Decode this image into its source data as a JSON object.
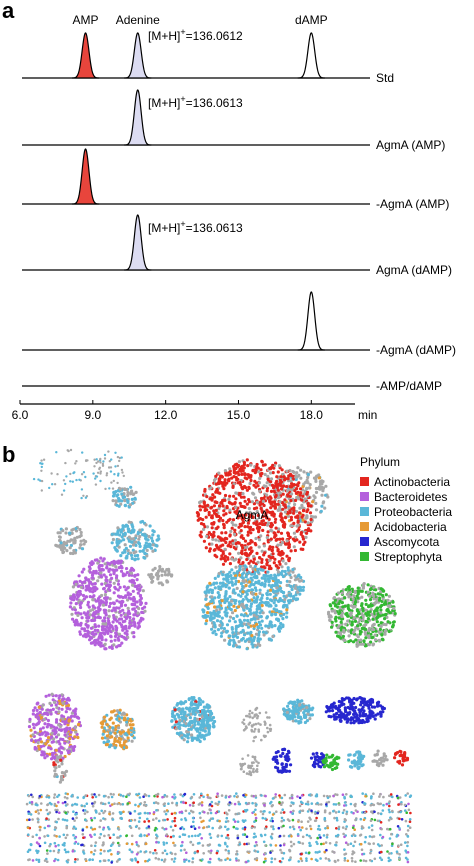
{
  "panel_a": {
    "label": "a",
    "peak_labels": [
      {
        "text": "AMP",
        "x": 8.7
      },
      {
        "text": "Adenine",
        "x": 10.85
      },
      {
        "text": "dAMP",
        "x": 18.0
      }
    ],
    "traces": [
      {
        "label": "Std",
        "annotation": [
          "[M+H]",
          "+",
          "=136.0612"
        ],
        "peaks": [
          {
            "x": 8.7,
            "color": "#e8453c"
          },
          {
            "x": 10.85,
            "color": "#dcdcf2"
          },
          {
            "x": 18.0,
            "color": "none"
          }
        ]
      },
      {
        "label": "AgmA (AMP)",
        "annotation": [
          "[M+H]",
          "+",
          "=136.0613"
        ],
        "peaks": [
          {
            "x": 10.85,
            "color": "#dcdcf2"
          }
        ]
      },
      {
        "label": "-AgmA (AMP)",
        "peaks": [
          {
            "x": 8.7,
            "color": "#e8453c"
          }
        ]
      },
      {
        "label": "AgmA (dAMP)",
        "annotation": [
          "[M+H]",
          "+",
          "=136.0613"
        ],
        "peaks": [
          {
            "x": 10.85,
            "color": "#dcdcf2"
          }
        ]
      },
      {
        "label": "-AgmA (dAMP)",
        "peaks": [
          {
            "x": 18.0,
            "color": "none"
          }
        ]
      },
      {
        "label": "-AMP/dAMP",
        "peaks": []
      }
    ],
    "xlim": [
      6,
      19.8
    ],
    "xticks": [
      {
        "value": 6,
        "label": "6.0"
      },
      {
        "value": 9,
        "label": "9.0"
      },
      {
        "value": 12,
        "label": "12.0"
      },
      {
        "value": 15,
        "label": "15.0"
      },
      {
        "value": 18,
        "label": "18.0"
      }
    ],
    "x_unit": "min"
  },
  "panel_b": {
    "label": "b",
    "hub_label": "AgmA",
    "legend": {
      "title": "Phylum",
      "entries": [
        {
          "name": "Actinobacteria",
          "color": "#e3261f"
        },
        {
          "name": "Bacteroidetes",
          "color": "#b460dc"
        },
        {
          "name": "Proteobacteria",
          "color": "#5ab7d8"
        },
        {
          "name": "Acidobacteria",
          "color": "#e69a35"
        },
        {
          "name": "Ascomycota",
          "color": "#2727cf"
        },
        {
          "name": "Streptophyta",
          "color": "#33b833"
        }
      ]
    }
  }
}
